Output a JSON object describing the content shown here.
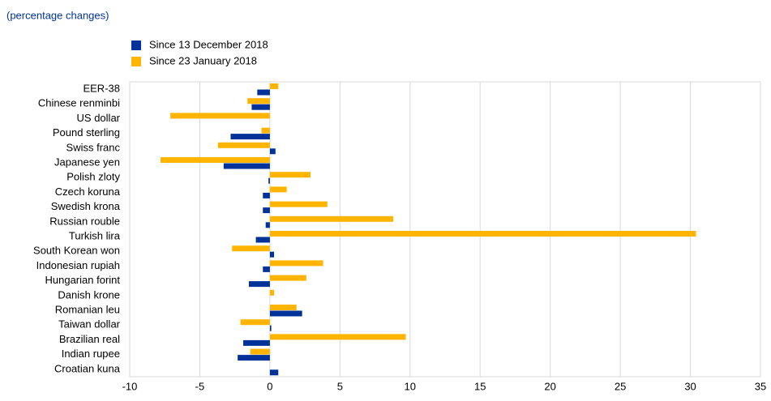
{
  "chart_data": {
    "type": "hbar",
    "subtitle": "(percentage changes)",
    "categories": [
      "EER-38",
      "Chinese renminbi",
      "US dollar",
      "Pound sterling",
      "Swiss franc",
      "Japanese yen",
      "Polish zloty",
      "Czech koruna",
      "Swedish krona",
      "Russian rouble",
      "Turkish lira",
      "South Korean won",
      "Indonesian rupiah",
      "Hungarian forint",
      "Danish krone",
      "Romanian leu",
      "Taiwan dollar",
      "Brazilian real",
      "Indian rupee",
      "Croatian kuna"
    ],
    "series": [
      {
        "name": "Since 13 December 2018",
        "color": "#003299",
        "values": [
          -0.9,
          -1.3,
          0,
          -2.8,
          0.4,
          -3.3,
          -0.1,
          -0.5,
          -0.5,
          -0.3,
          -1.0,
          0.3,
          -0.5,
          -1.5,
          0,
          2.3,
          0.1,
          -1.9,
          -2.3,
          0.6
        ]
      },
      {
        "name": "Since 23 January 2018",
        "color": "#ffb400",
        "values": [
          0.6,
          -1.6,
          -7.1,
          -0.6,
          -3.7,
          -7.8,
          2.9,
          1.2,
          4.1,
          8.8,
          30.4,
          -2.7,
          3.8,
          2.6,
          0.3,
          1.9,
          -2.1,
          9.7,
          -1.4,
          0
        ]
      }
    ],
    "xlim": [
      -10,
      35
    ],
    "xticks": [
      -10,
      -5,
      0,
      5,
      10,
      15,
      20,
      25,
      30,
      35
    ],
    "grid": true
  }
}
